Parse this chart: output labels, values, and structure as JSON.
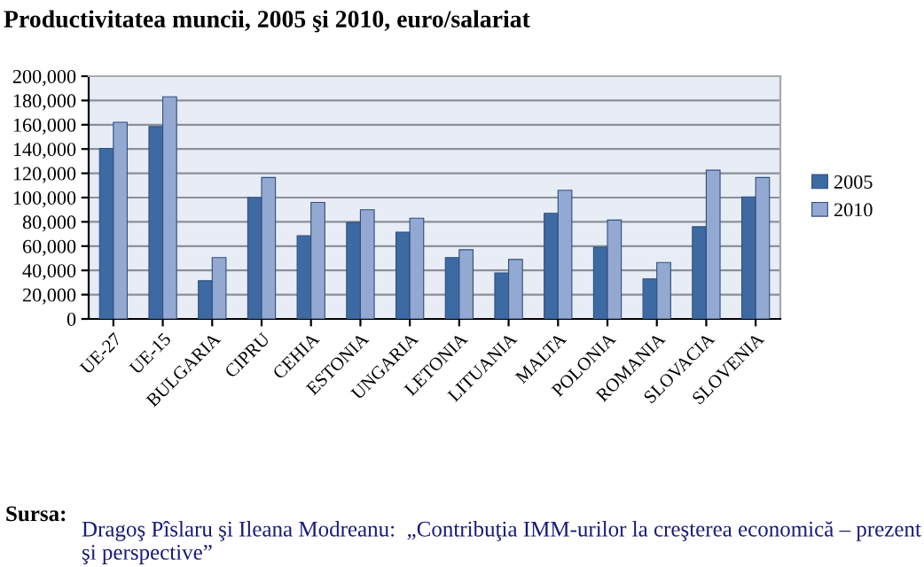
{
  "chart_data": {
    "type": "bar",
    "title": "Productivitatea muncii, 2005 şi 2010, euro/salariat",
    "categories": [
      "UE-27",
      "UE-15",
      "BULGARIA",
      "CIPRU",
      "CEHIA",
      "ESTONIA",
      "UNGARIA",
      "LETONIA",
      "LITUANIA",
      "MALTA",
      "POLONIA",
      "ROMANIA",
      "SLOVACIA",
      "SLOVENIA"
    ],
    "series": [
      {
        "name": "2005",
        "color": "#3d6aa3",
        "values": [
          140500,
          158500,
          31500,
          100000,
          68500,
          79500,
          71500,
          50500,
          38000,
          87000,
          59000,
          33000,
          76000,
          100500
        ]
      },
      {
        "name": "2010",
        "color": "#93a9d2",
        "values": [
          162000,
          183000,
          50500,
          116500,
          96000,
          90000,
          83000,
          57000,
          49000,
          106000,
          81500,
          46500,
          122500,
          116500
        ]
      }
    ],
    "ylim": [
      0,
      200000
    ],
    "yticks": [
      {
        "value": 0,
        "label": "0"
      },
      {
        "value": 20000,
        "label": "20,000"
      },
      {
        "value": 40000,
        "label": "40,000"
      },
      {
        "value": 60000,
        "label": "60,000"
      },
      {
        "value": 80000,
        "label": "80,000"
      },
      {
        "value": 100000,
        "label": "100,000"
      },
      {
        "value": 120000,
        "label": "120,000"
      },
      {
        "value": 140000,
        "label": "140,000"
      },
      {
        "value": 160000,
        "label": "160,000"
      },
      {
        "value": 180000,
        "label": "180,000"
      },
      {
        "value": 200000,
        "label": "200,000"
      }
    ],
    "grid": "y",
    "legend": "right",
    "annotations": [
      "Sursa:",
      "Dragoş Pîslaru şi Ileana Modreanu:  „Contribuţia IMM-urilor la creşterea economică – prezent şi perspective”"
    ]
  }
}
